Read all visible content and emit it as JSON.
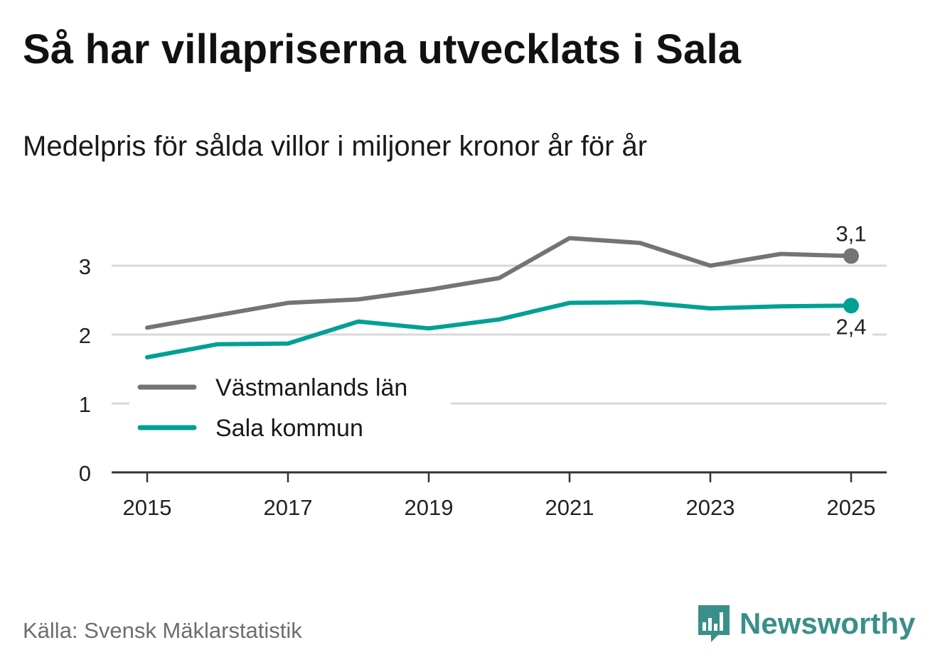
{
  "header": {
    "title": "Så har villapriserna utvecklats i Sala",
    "subtitle": "Medelpris för sålda villor i miljoner kronor år för år"
  },
  "footer": {
    "source": "Källa: Svensk Mäklarstatistik",
    "brand": "Newsworthy"
  },
  "colors": {
    "series_1": "#737378",
    "series_2": "#00a094",
    "grid": "#d8d8d8",
    "axis": "#333333",
    "brand": "#3a8f8a"
  },
  "chart_data": {
    "type": "line",
    "title": "Så har villapriserna utvecklats i Sala",
    "subtitle": "Medelpris för sålda villor i miljoner kronor år för år",
    "xlabel": "",
    "ylabel": "",
    "x": [
      2015,
      2016,
      2017,
      2018,
      2019,
      2020,
      2021,
      2022,
      2023,
      2024,
      2025
    ],
    "x_ticks": [
      "2015",
      "2017",
      "2019",
      "2021",
      "2023",
      "2025"
    ],
    "y_ticks": [
      "0",
      "1",
      "2",
      "3"
    ],
    "ylim": [
      0,
      3.6
    ],
    "grid": true,
    "legend_position": "bottom-left",
    "series": [
      {
        "name": "Västmanlands län",
        "color": "#737378",
        "values": [
          2.1,
          2.28,
          2.46,
          2.51,
          2.65,
          2.82,
          3.4,
          3.33,
          3.0,
          3.17,
          3.14
        ],
        "end_label": "3,1"
      },
      {
        "name": "Sala kommun",
        "color": "#00a094",
        "values": [
          1.67,
          1.86,
          1.87,
          2.19,
          2.09,
          2.22,
          2.46,
          2.47,
          2.38,
          2.41,
          2.42
        ],
        "end_label": "2,4"
      }
    ]
  }
}
